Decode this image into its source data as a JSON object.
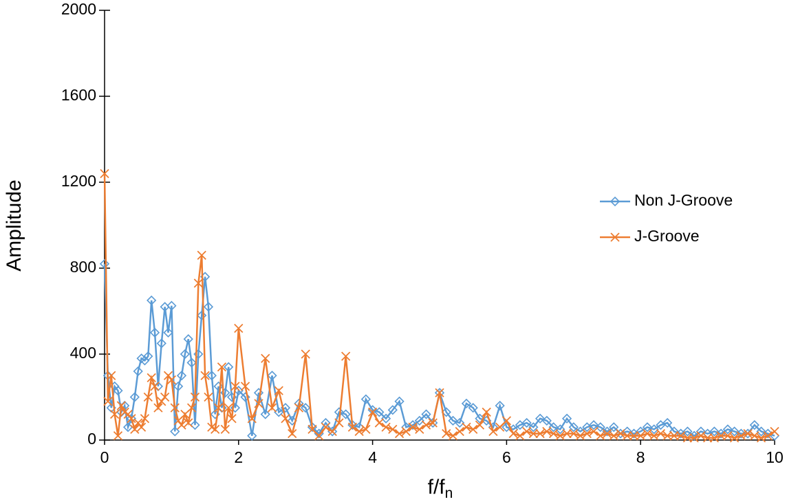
{
  "chart_data": {
    "type": "line",
    "xlabel": {
      "text": "f/f",
      "subscript": "n"
    },
    "ylabel": "Amplitude",
    "xlim": [
      0,
      10
    ],
    "ylim": [
      0,
      2000
    ],
    "xticks": [
      0,
      2,
      4,
      6,
      8,
      10
    ],
    "yticks": [
      0,
      400,
      800,
      1200,
      1600,
      2000
    ],
    "legend": "right",
    "x": [
      0,
      0.05,
      0.1,
      0.15,
      0.2,
      0.25,
      0.3,
      0.35,
      0.4,
      0.45,
      0.5,
      0.55,
      0.6,
      0.65,
      0.7,
      0.75,
      0.8,
      0.85,
      0.9,
      0.95,
      1.0,
      1.05,
      1.1,
      1.15,
      1.2,
      1.25,
      1.3,
      1.35,
      1.4,
      1.45,
      1.5,
      1.55,
      1.6,
      1.65,
      1.7,
      1.75,
      1.8,
      1.85,
      1.9,
      1.95,
      2.0,
      2.1,
      2.2,
      2.3,
      2.4,
      2.5,
      2.6,
      2.7,
      2.8,
      2.9,
      3.0,
      3.1,
      3.2,
      3.3,
      3.4,
      3.5,
      3.6,
      3.7,
      3.8,
      3.9,
      4.0,
      4.1,
      4.2,
      4.3,
      4.4,
      4.5,
      4.6,
      4.7,
      4.8,
      4.9,
      5.0,
      5.1,
      5.2,
      5.3,
      5.4,
      5.5,
      5.6,
      5.7,
      5.8,
      5.9,
      6.0,
      6.1,
      6.2,
      6.3,
      6.4,
      6.5,
      6.6,
      6.7,
      6.8,
      6.9,
      7.0,
      7.1,
      7.2,
      7.3,
      7.4,
      7.5,
      7.6,
      7.7,
      7.8,
      7.9,
      8.0,
      8.1,
      8.2,
      8.3,
      8.4,
      8.5,
      8.6,
      8.7,
      8.8,
      8.9,
      9.0,
      9.1,
      9.2,
      9.3,
      9.4,
      9.5,
      9.6,
      9.7,
      9.8,
      9.9,
      10.0
    ],
    "series": [
      {
        "name": "Non J-Groove",
        "color": "#5b9bd5",
        "marker": "diamond",
        "values": [
          820,
          300,
          150,
          250,
          230,
          130,
          160,
          60,
          100,
          200,
          320,
          380,
          370,
          390,
          650,
          500,
          250,
          450,
          620,
          500,
          625,
          40,
          250,
          300,
          400,
          470,
          360,
          70,
          400,
          580,
          760,
          620,
          300,
          120,
          250,
          150,
          220,
          340,
          200,
          150,
          230,
          200,
          20,
          220,
          120,
          300,
          130,
          150,
          90,
          170,
          150,
          60,
          30,
          80,
          40,
          130,
          120,
          70,
          60,
          190,
          140,
          130,
          100,
          140,
          180,
          60,
          70,
          90,
          120,
          80,
          220,
          130,
          90,
          80,
          170,
          150,
          100,
          90,
          60,
          160,
          60,
          50,
          70,
          80,
          60,
          100,
          90,
          60,
          50,
          100,
          60,
          40,
          60,
          70,
          60,
          40,
          60,
          30,
          40,
          30,
          40,
          60,
          50,
          70,
          80,
          40,
          30,
          40,
          20,
          40,
          30,
          40,
          30,
          50,
          40,
          30,
          30,
          70,
          40,
          30,
          20
        ]
      },
      {
        "name": "J-Groove",
        "color": "#ed7d31",
        "marker": "x",
        "values": [
          1240,
          180,
          300,
          120,
          20,
          160,
          130,
          120,
          100,
          50,
          80,
          60,
          100,
          200,
          290,
          250,
          150,
          180,
          200,
          300,
          280,
          150,
          90,
          70,
          120,
          80,
          150,
          200,
          730,
          860,
          300,
          200,
          60,
          50,
          150,
          340,
          50,
          150,
          100,
          250,
          520,
          250,
          100,
          170,
          380,
          150,
          230,
          100,
          30,
          150,
          400,
          50,
          20,
          60,
          40,
          80,
          390,
          60,
          40,
          50,
          130,
          80,
          60,
          50,
          30,
          40,
          60,
          50,
          70,
          80,
          220,
          30,
          20,
          40,
          60,
          50,
          70,
          130,
          40,
          60,
          90,
          30,
          20,
          40,
          30,
          30,
          40,
          30,
          20,
          30,
          30,
          20,
          30,
          40,
          20,
          30,
          20,
          30,
          20,
          20,
          20,
          30,
          20,
          30,
          20,
          20,
          20,
          10,
          10,
          20,
          10,
          10,
          20,
          20,
          10,
          20,
          30,
          20,
          10,
          20,
          40
        ]
      }
    ]
  }
}
